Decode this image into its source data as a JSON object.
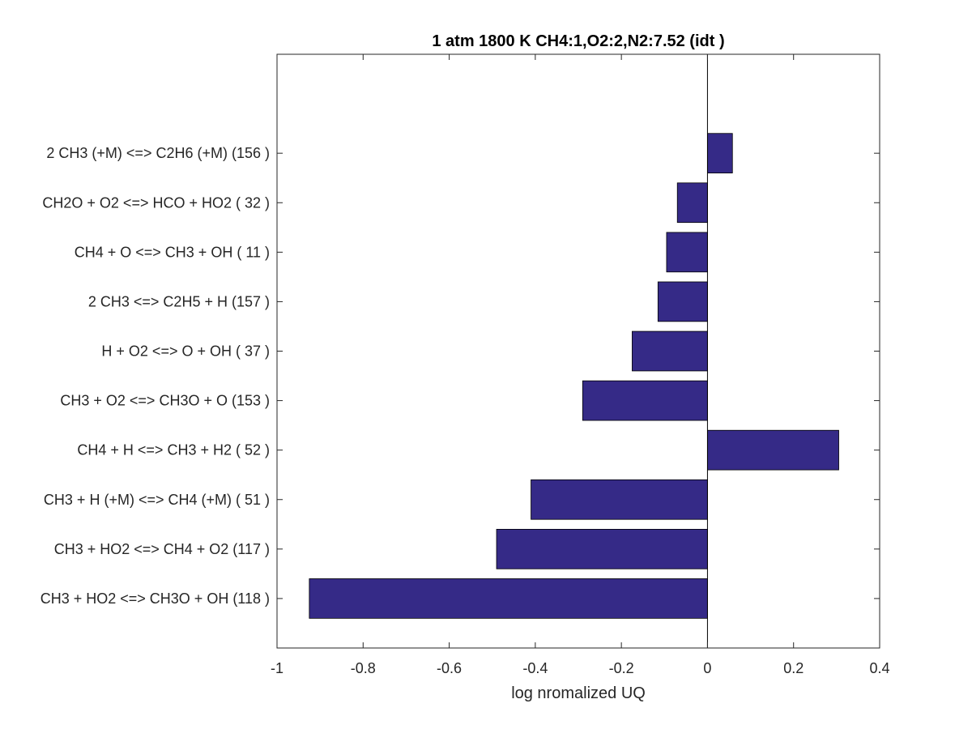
{
  "chart_data": {
    "type": "bar",
    "orientation": "horizontal",
    "title": "1 atm 1800 K CH4:1,O2:2,N2:7.52 (idt )",
    "xlabel": "log nromalized UQ",
    "ylabel": "",
    "xlim": [
      -1,
      0.4
    ],
    "xticks": [
      "-1",
      "-0.8",
      "-0.6",
      "-0.4",
      "-0.2",
      "0",
      "0.2",
      "0.4"
    ],
    "categories": [
      "CH3 + HO2 <=> CH3O + OH (118 )",
      "CH3 + HO2 <=> CH4 + O2 (117 )",
      "CH3 + H (+M) <=> CH4 (+M) ( 51 )",
      "CH4 + H <=> CH3 + H2 ( 52 )",
      "CH3 + O2 <=> CH3O + O (153 )",
      "H + O2 <=> O + OH ( 37 )",
      "2 CH3 <=> C2H5 + H (157 )",
      "CH4 + O <=> CH3 + OH ( 11 )",
      "CH2O + O2 <=> HCO + HO2 ( 32 )",
      "2 CH3 (+M) <=> C2H6 (+M) (156 )"
    ],
    "values": [
      -0.925,
      -0.49,
      -0.41,
      0.305,
      -0.29,
      -0.175,
      -0.115,
      -0.095,
      -0.07,
      0.058
    ],
    "bar_color": "#352a87",
    "grid": false
  }
}
